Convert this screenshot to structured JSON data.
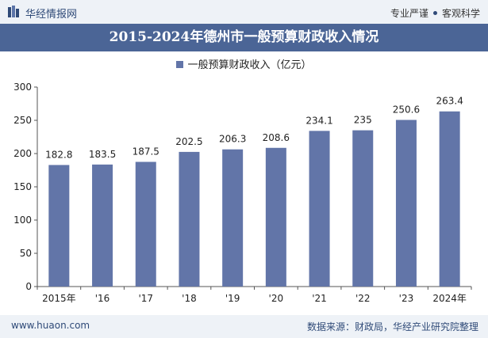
{
  "header": {
    "brand": "华经情报网",
    "tag_left": "专业严谨",
    "tag_right": "客观科学"
  },
  "title": "2015-2024年德州市一般预算财政收入情况",
  "legend_label": "一般预算财政收入（亿元）",
  "footer": {
    "website": "www.huaon.com",
    "source": "数据来源：财政局，华经产业研究院整理"
  },
  "colors": {
    "bar": "#6275a8",
    "title_bar": "#4b6596",
    "band": "#eef2f7"
  },
  "chart_data": {
    "type": "bar",
    "title": "2015-2024年德州市一般预算财政收入情况",
    "categories": [
      "2015年",
      "'16",
      "'17",
      "'18",
      "'19",
      "'20",
      "'21",
      "'22",
      "'23",
      "2024年"
    ],
    "series": [
      {
        "name": "一般预算财政收入（亿元）",
        "values": [
          182.8,
          183.5,
          187.5,
          202.5,
          206.3,
          208.6,
          234.1,
          235,
          250.6,
          263.4
        ]
      }
    ],
    "data_labels": [
      "182.8",
      "183.5",
      "187.5",
      "202.5",
      "206.3",
      "208.6",
      "234.1",
      "235",
      "250.6",
      "263.4"
    ],
    "ylim": [
      0,
      300
    ],
    "yticks": [
      0,
      50,
      100,
      150,
      200,
      250,
      300
    ],
    "grid": false,
    "legend": "top-center"
  }
}
